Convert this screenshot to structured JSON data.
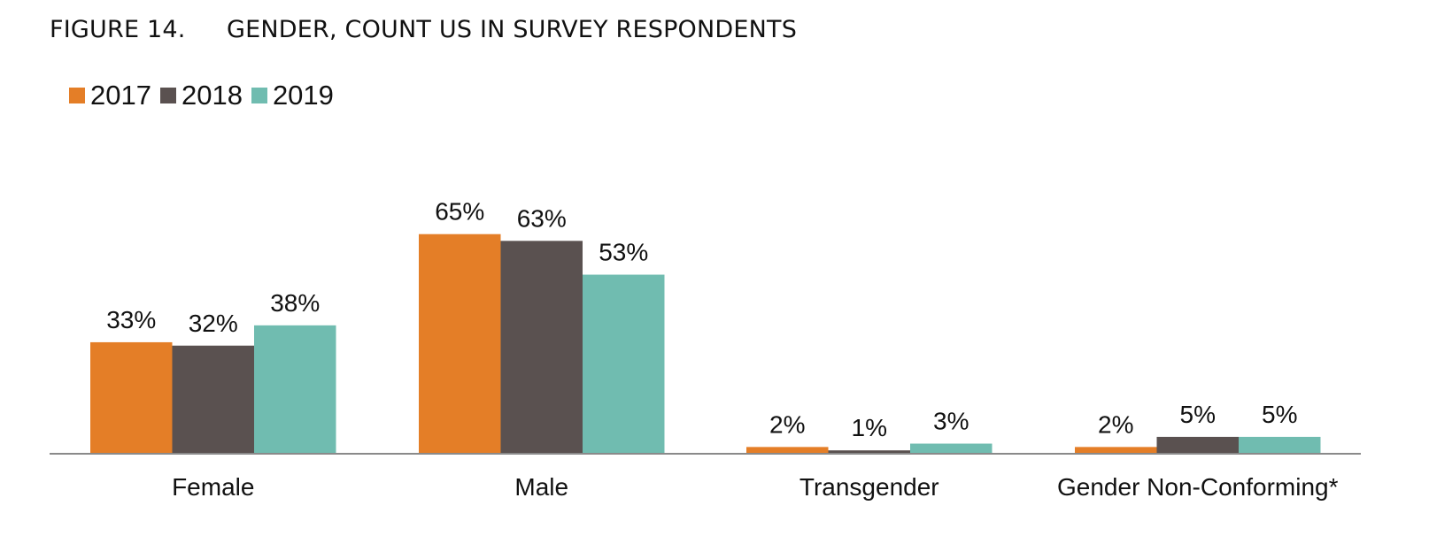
{
  "figure": {
    "number": "FIGURE 14.",
    "title": "GENDER, COUNT US IN SURVEY RESPONDENTS"
  },
  "chart_data": {
    "type": "bar",
    "categories": [
      "Female",
      "Male",
      "Transgender",
      "Gender Non-Conforming*"
    ],
    "series": [
      {
        "name": "2017",
        "color": "#E47E27",
        "values": [
          33,
          65,
          2,
          2
        ]
      },
      {
        "name": "2018",
        "color": "#5A5150",
        "values": [
          32,
          63,
          1,
          5
        ]
      },
      {
        "name": "2019",
        "color": "#70BCB0",
        "values": [
          38,
          53,
          3,
          5
        ]
      }
    ],
    "value_labels": [
      [
        "33%",
        "65%",
        "2%",
        "2%"
      ],
      [
        "32%",
        "63%",
        "1%",
        "5%"
      ],
      [
        "38%",
        "53%",
        "3%",
        "5%"
      ]
    ],
    "legend_position": "top-left",
    "grid": false
  }
}
